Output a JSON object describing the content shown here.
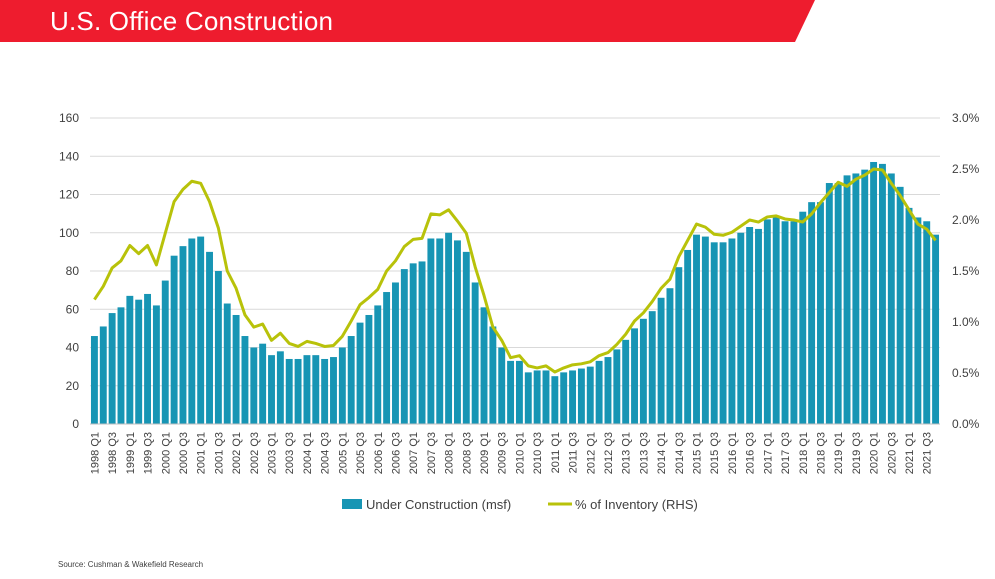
{
  "header": {
    "title": "U.S. Office Construction"
  },
  "source": "Source: Cushman & Wakefield Research",
  "colors": {
    "brand_red": "#ee1c2e",
    "bar": "#1795b4",
    "line": "#b8c20a",
    "grid": "#d9d9d9",
    "text": "#404040"
  },
  "chart_data": {
    "type": "bar",
    "title": "U.S. Office Construction",
    "categories": [
      "1998 Q1",
      "1998 Q2",
      "1998 Q3",
      "1998 Q4",
      "1999 Q1",
      "1999 Q2",
      "1999 Q3",
      "1999 Q4",
      "2000 Q1",
      "2000 Q2",
      "2000 Q3",
      "2000 Q4",
      "2001 Q1",
      "2001 Q2",
      "2001 Q3",
      "2001 Q4",
      "2002 Q1",
      "2002 Q2",
      "2002 Q3",
      "2002 Q4",
      "2003 Q1",
      "2003 Q2",
      "2003 Q3",
      "2003 Q4",
      "2004 Q1",
      "2004 Q2",
      "2004 Q3",
      "2004 Q4",
      "2005 Q1",
      "2005 Q2",
      "2005 Q3",
      "2005 Q4",
      "2006 Q1",
      "2006 Q2",
      "2006 Q3",
      "2006 Q4",
      "2007 Q1",
      "2007 Q2",
      "2007 Q3",
      "2007 Q4",
      "2008 Q1",
      "2008 Q2",
      "2008 Q3",
      "2008 Q4",
      "2009 Q1",
      "2009 Q2",
      "2009 Q3",
      "2009 Q4",
      "2010 Q1",
      "2010 Q2",
      "2010 Q3",
      "2010 Q4",
      "2011 Q1",
      "2011 Q2",
      "2011 Q3",
      "2011 Q4",
      "2012 Q1",
      "2012 Q2",
      "2012 Q3",
      "2012 Q4",
      "2013 Q1",
      "2013 Q2",
      "2013 Q3",
      "2013 Q4",
      "2014 Q1",
      "2014 Q2",
      "2014 Q3",
      "2014 Q4",
      "2015 Q1",
      "2015 Q2",
      "2015 Q3",
      "2015 Q4",
      "2016 Q1",
      "2016 Q2",
      "2016 Q3",
      "2016 Q4",
      "2017 Q1",
      "2017 Q2",
      "2017 Q3",
      "2017 Q4",
      "2018 Q1",
      "2018 Q2",
      "2018 Q3",
      "2018 Q4",
      "2019 Q1",
      "2019 Q2",
      "2019 Q3",
      "2019 Q4",
      "2020 Q1",
      "2020 Q2",
      "2020 Q3",
      "2020 Q4",
      "2021 Q1",
      "2021 Q2",
      "2021 Q3",
      "2021 Q4"
    ],
    "tick_labels": [
      "1998 Q1",
      "1998 Q3",
      "1999 Q1",
      "1999 Q3",
      "2000 Q1",
      "2000 Q3",
      "2001 Q1",
      "2001 Q3",
      "2002 Q1",
      "2002 Q3",
      "2003 Q1",
      "2003 Q3",
      "2004 Q1",
      "2004 Q3",
      "2005 Q1",
      "2005 Q3",
      "2006 Q1",
      "2006 Q3",
      "2007 Q1",
      "2007 Q3",
      "2008 Q1",
      "2008 Q3",
      "2009 Q1",
      "2009 Q3",
      "2010 Q1",
      "2010 Q3",
      "2011 Q1",
      "2011 Q3",
      "2012 Q1",
      "2012 Q3",
      "2013 Q1",
      "2013 Q3",
      "2014 Q1",
      "2014 Q3",
      "2015 Q1",
      "2015 Q3",
      "2016 Q1",
      "2016 Q3",
      "2017 Q1",
      "2017 Q3",
      "2018 Q1",
      "2018 Q3",
      "2019 Q1",
      "2019 Q3",
      "2020 Q1",
      "2020 Q3",
      "2021 Q1",
      "2021 Q3"
    ],
    "series": [
      {
        "name": "Under Construction (msf)",
        "type": "bar",
        "axis": "left",
        "values": [
          46,
          51,
          58,
          61,
          67,
          65,
          68,
          62,
          75,
          88,
          93,
          97,
          98,
          90,
          80,
          63,
          57,
          46,
          40,
          42,
          36,
          38,
          34,
          34,
          36,
          36,
          34,
          35,
          40,
          46,
          53,
          57,
          62,
          69,
          74,
          81,
          84,
          85,
          97,
          97,
          100,
          96,
          90,
          74,
          61,
          51,
          40,
          33,
          33,
          27,
          28,
          28,
          25,
          27,
          28,
          29,
          30,
          33,
          35,
          39,
          44,
          50,
          55,
          59,
          66,
          71,
          82,
          91,
          99,
          98,
          95,
          95,
          97,
          100,
          103,
          102,
          107,
          108,
          106,
          106,
          111,
          116,
          116,
          126,
          126,
          130,
          131,
          133,
          137,
          136,
          131,
          124,
          113,
          108,
          106,
          99
        ]
      },
      {
        "name": "% of Inventory (RHS)",
        "type": "line",
        "axis": "right",
        "values": [
          1.22,
          1.35,
          1.53,
          1.6,
          1.75,
          1.67,
          1.75,
          1.56,
          1.87,
          2.18,
          2.3,
          2.38,
          2.36,
          2.18,
          1.92,
          1.5,
          1.33,
          1.07,
          0.95,
          0.98,
          0.82,
          0.89,
          0.79,
          0.76,
          0.81,
          0.79,
          0.76,
          0.77,
          0.86,
          1.01,
          1.17,
          1.24,
          1.32,
          1.5,
          1.6,
          1.74,
          1.81,
          1.82,
          2.06,
          2.05,
          2.1,
          1.99,
          1.87,
          1.54,
          1.26,
          0.95,
          0.82,
          0.65,
          0.67,
          0.57,
          0.55,
          0.57,
          0.51,
          0.55,
          0.58,
          0.59,
          0.61,
          0.67,
          0.7,
          0.78,
          0.88,
          1.01,
          1.09,
          1.2,
          1.33,
          1.42,
          1.64,
          1.8,
          1.96,
          1.93,
          1.86,
          1.85,
          1.88,
          1.94,
          2.0,
          1.98,
          2.03,
          2.04,
          2.01,
          2.0,
          1.98,
          2.06,
          2.17,
          2.27,
          2.37,
          2.33,
          2.4,
          2.44,
          2.5,
          2.49,
          2.36,
          2.24,
          2.1,
          1.96,
          1.91,
          1.8
        ]
      }
    ],
    "y_left": {
      "min": 0,
      "max": 160,
      "ticks": [
        "0",
        "20",
        "40",
        "60",
        "80",
        "100",
        "120",
        "140",
        "160"
      ]
    },
    "y_right": {
      "min": 0,
      "max": 3.0,
      "ticks": [
        "0.0%",
        "0.5%",
        "1.0%",
        "1.5%",
        "2.0%",
        "2.5%",
        "3.0%"
      ]
    },
    "grid": true,
    "legend": {
      "position": "bottom",
      "entries": [
        "Under Construction (msf)",
        "% of Inventory (RHS)"
      ]
    }
  }
}
